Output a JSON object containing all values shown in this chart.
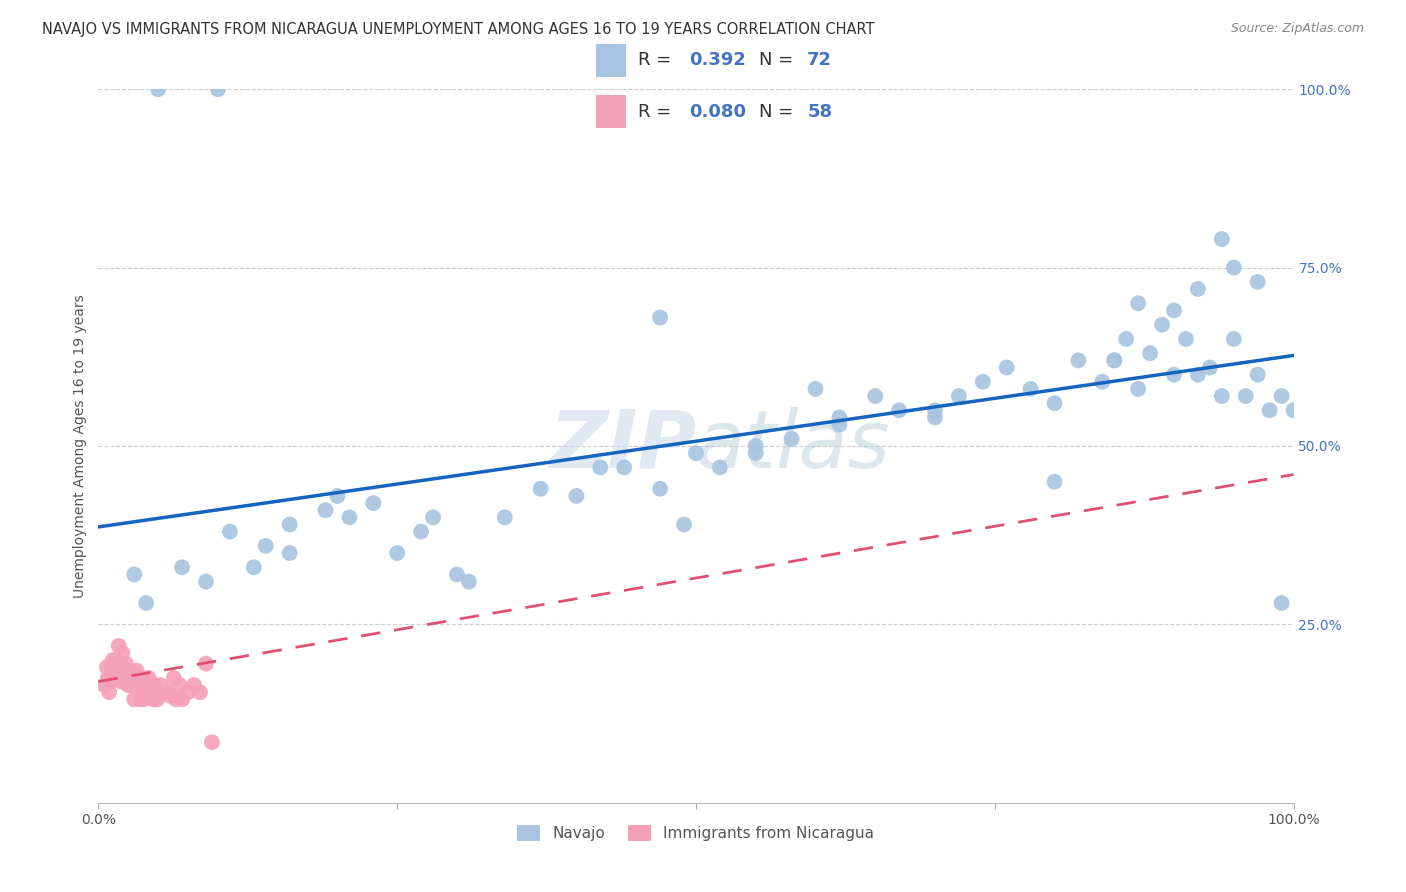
{
  "title": "NAVAJO VS IMMIGRANTS FROM NICARAGUA UNEMPLOYMENT AMONG AGES 16 TO 19 YEARS CORRELATION CHART",
  "source": "Source: ZipAtlas.com",
  "ylabel": "Unemployment Among Ages 16 to 19 years",
  "navajo_R": "0.392",
  "navajo_N": "72",
  "nicaragua_R": "0.080",
  "nicaragua_N": "58",
  "navajo_color": "#a8c4e0",
  "navajo_line_color": "#1565c0",
  "nicaragua_color": "#f4a0b8",
  "nicaragua_line_color": "#e05070",
  "watermark_text": "ZIPatlas",
  "legend_labels": [
    "Navajo",
    "Immigrants from Nicaragua"
  ],
  "background_color": "#ffffff",
  "grid_color": "#cccccc",
  "ytick_labels": [
    "",
    "25.0%",
    "50.0%",
    "75.0%",
    "100.0%"
  ],
  "xticklabels": [
    "0.0%",
    "",
    "",
    "",
    "100.0%"
  ],
  "navajo_color_text": "#4472c4",
  "label_color": "#4472c4"
}
